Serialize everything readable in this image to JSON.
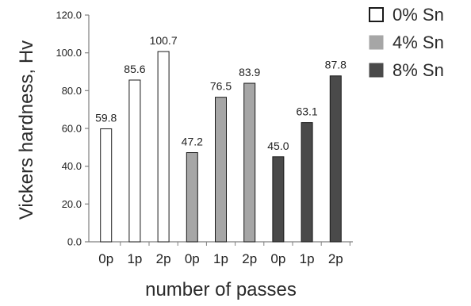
{
  "chart_data": {
    "type": "bar",
    "title": "",
    "xlabel": "number of passes",
    "ylabel": "Vickers hardness, Hv",
    "ylim": [
      0,
      120
    ],
    "yticks": [
      "0.0",
      "20.0",
      "40.0",
      "60.0",
      "80.0",
      "100.0",
      "120.0"
    ],
    "grid": false,
    "legend_position": "top-right",
    "categories": [
      "0p",
      "1p",
      "2p"
    ],
    "series": [
      {
        "name": "0% Sn",
        "values": [
          59.8,
          85.6,
          100.7
        ],
        "labels": [
          "59.8",
          "85.6",
          "100.7"
        ],
        "color": "#ffffff"
      },
      {
        "name": "4% Sn",
        "values": [
          47.2,
          76.5,
          83.9
        ],
        "labels": [
          "47.2",
          "76.5",
          "83.9"
        ],
        "color": "#a6a6a6"
      },
      {
        "name": "8% Sn",
        "values": [
          45.0,
          63.1,
          87.8
        ],
        "labels": [
          "45.0",
          "63.1",
          "87.8"
        ],
        "color": "#4a4a4a"
      }
    ]
  }
}
